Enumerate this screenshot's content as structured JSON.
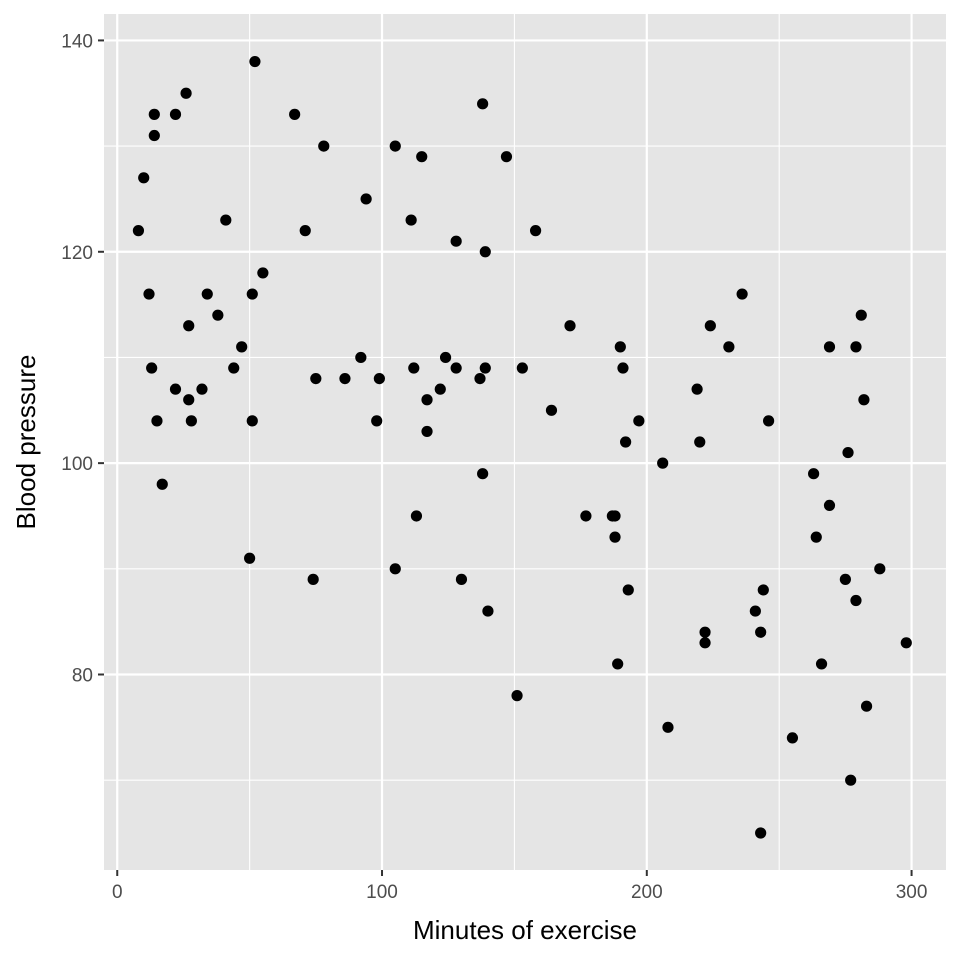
{
  "chart_data": {
    "type": "scatter",
    "title": "",
    "xlabel": "Minutes of exercise",
    "ylabel": "Blood pressure",
    "xlim": [
      -5,
      313
    ],
    "ylim": [
      61.5,
      142.5
    ],
    "x_ticks": [
      0,
      100,
      200,
      300
    ],
    "x_tick_labels": [
      "0",
      "100",
      "200",
      "300"
    ],
    "y_ticks": [
      80,
      100,
      120,
      140
    ],
    "y_tick_labels": [
      "80",
      "100",
      "120",
      "140"
    ],
    "x_minor_ticks": [
      50,
      150,
      250
    ],
    "y_minor_ticks": [
      70,
      90,
      110,
      130
    ],
    "grid": true,
    "colors": {
      "panel": "#e5e5e5",
      "grid": "#ffffff",
      "point": "#000000",
      "tick_text": "#4d4d4d"
    },
    "points": [
      {
        "x": 8,
        "y": 122
      },
      {
        "x": 10,
        "y": 127
      },
      {
        "x": 12,
        "y": 116
      },
      {
        "x": 13,
        "y": 109
      },
      {
        "x": 14,
        "y": 133
      },
      {
        "x": 14,
        "y": 131
      },
      {
        "x": 15,
        "y": 104
      },
      {
        "x": 17,
        "y": 98
      },
      {
        "x": 22,
        "y": 133
      },
      {
        "x": 22,
        "y": 107
      },
      {
        "x": 26,
        "y": 135
      },
      {
        "x": 27,
        "y": 113
      },
      {
        "x": 27,
        "y": 106
      },
      {
        "x": 28,
        "y": 104
      },
      {
        "x": 32,
        "y": 107
      },
      {
        "x": 34,
        "y": 116
      },
      {
        "x": 38,
        "y": 114
      },
      {
        "x": 41,
        "y": 123
      },
      {
        "x": 44,
        "y": 109
      },
      {
        "x": 47,
        "y": 111
      },
      {
        "x": 50,
        "y": 91
      },
      {
        "x": 51,
        "y": 116
      },
      {
        "x": 51,
        "y": 104
      },
      {
        "x": 52,
        "y": 138
      },
      {
        "x": 55,
        "y": 118
      },
      {
        "x": 67,
        "y": 133
      },
      {
        "x": 71,
        "y": 122
      },
      {
        "x": 74,
        "y": 89
      },
      {
        "x": 75,
        "y": 108
      },
      {
        "x": 78,
        "y": 130
      },
      {
        "x": 86,
        "y": 108
      },
      {
        "x": 92,
        "y": 110
      },
      {
        "x": 94,
        "y": 125
      },
      {
        "x": 98,
        "y": 104
      },
      {
        "x": 99,
        "y": 108
      },
      {
        "x": 105,
        "y": 130
      },
      {
        "x": 105,
        "y": 90
      },
      {
        "x": 111,
        "y": 123
      },
      {
        "x": 112,
        "y": 109
      },
      {
        "x": 113,
        "y": 95
      },
      {
        "x": 115,
        "y": 129
      },
      {
        "x": 117,
        "y": 106
      },
      {
        "x": 117,
        "y": 103
      },
      {
        "x": 122,
        "y": 107
      },
      {
        "x": 124,
        "y": 110
      },
      {
        "x": 128,
        "y": 121
      },
      {
        "x": 128,
        "y": 109
      },
      {
        "x": 130,
        "y": 89
      },
      {
        "x": 137,
        "y": 108
      },
      {
        "x": 138,
        "y": 134
      },
      {
        "x": 138,
        "y": 99
      },
      {
        "x": 139,
        "y": 120
      },
      {
        "x": 139,
        "y": 109
      },
      {
        "x": 140,
        "y": 86
      },
      {
        "x": 147,
        "y": 129
      },
      {
        "x": 151,
        "y": 78
      },
      {
        "x": 153,
        "y": 109
      },
      {
        "x": 158,
        "y": 122
      },
      {
        "x": 164,
        "y": 105
      },
      {
        "x": 171,
        "y": 113
      },
      {
        "x": 177,
        "y": 95
      },
      {
        "x": 187,
        "y": 95
      },
      {
        "x": 188,
        "y": 95
      },
      {
        "x": 188,
        "y": 93
      },
      {
        "x": 189,
        "y": 81
      },
      {
        "x": 190,
        "y": 111
      },
      {
        "x": 191,
        "y": 109
      },
      {
        "x": 192,
        "y": 102
      },
      {
        "x": 193,
        "y": 88
      },
      {
        "x": 197,
        "y": 104
      },
      {
        "x": 206,
        "y": 100
      },
      {
        "x": 208,
        "y": 75
      },
      {
        "x": 219,
        "y": 107
      },
      {
        "x": 220,
        "y": 102
      },
      {
        "x": 222,
        "y": 84
      },
      {
        "x": 222,
        "y": 83
      },
      {
        "x": 224,
        "y": 113
      },
      {
        "x": 231,
        "y": 111
      },
      {
        "x": 236,
        "y": 116
      },
      {
        "x": 241,
        "y": 86
      },
      {
        "x": 243,
        "y": 84
      },
      {
        "x": 243,
        "y": 65
      },
      {
        "x": 244,
        "y": 88
      },
      {
        "x": 246,
        "y": 104
      },
      {
        "x": 255,
        "y": 74
      },
      {
        "x": 263,
        "y": 99
      },
      {
        "x": 264,
        "y": 93
      },
      {
        "x": 266,
        "y": 81
      },
      {
        "x": 269,
        "y": 111
      },
      {
        "x": 269,
        "y": 96
      },
      {
        "x": 275,
        "y": 89
      },
      {
        "x": 276,
        "y": 101
      },
      {
        "x": 277,
        "y": 70
      },
      {
        "x": 279,
        "y": 111
      },
      {
        "x": 279,
        "y": 87
      },
      {
        "x": 281,
        "y": 114
      },
      {
        "x": 282,
        "y": 106
      },
      {
        "x": 283,
        "y": 77
      },
      {
        "x": 288,
        "y": 90
      },
      {
        "x": 298,
        "y": 83
      }
    ]
  }
}
